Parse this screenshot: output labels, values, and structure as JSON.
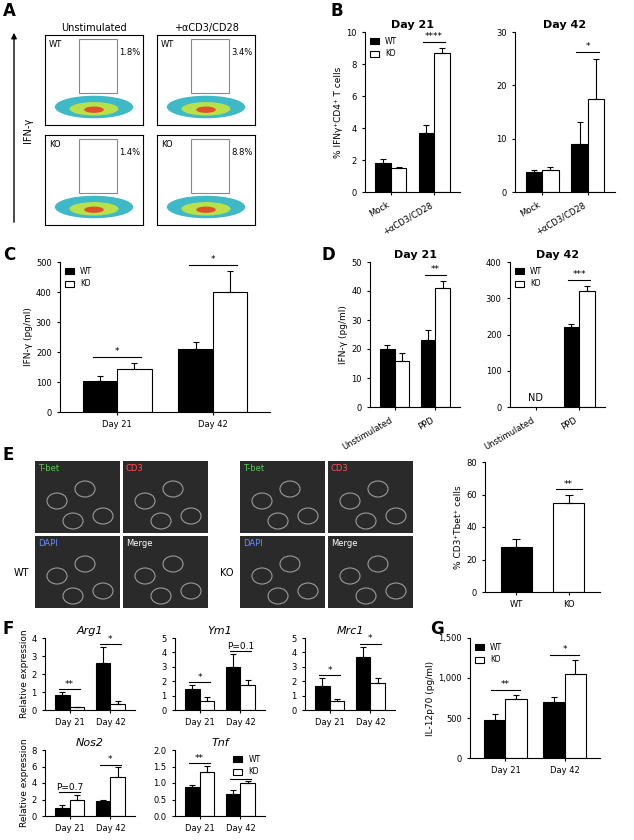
{
  "panels": [
    "A",
    "B",
    "C",
    "D",
    "E",
    "F",
    "G"
  ],
  "flow": {
    "y_label": "IFN-γ",
    "columns": [
      "Unstimulated",
      "+αCD3/CD28"
    ],
    "rows": [
      "WT",
      "KO"
    ],
    "percentages": [
      [
        "1.8%",
        "3.4%"
      ],
      [
        "1.4%",
        "8.8%"
      ]
    ]
  },
  "micrographs": {
    "rows": [
      "WT",
      "KO"
    ],
    "channels": [
      "T-bet",
      "CD3",
      "DAPI",
      "Merge"
    ]
  },
  "chart_data": [
    {
      "type": "bar",
      "title": "Day 21",
      "y_label": "% IFNγ⁺CD4⁺ T cells",
      "categories": [
        "Mock",
        "+αCD3/CD28"
      ],
      "series": [
        {
          "name": "WT",
          "color": "#000000",
          "values": [
            1.8,
            3.7
          ],
          "errors": [
            0.25,
            0.5
          ]
        },
        {
          "name": "KO",
          "color": "#ffffff",
          "values": [
            1.5,
            8.7
          ],
          "errors": [
            0.05,
            0.3
          ]
        }
      ],
      "ylim": [
        0,
        10
      ],
      "yticks": [
        0,
        2,
        4,
        6,
        8,
        10
      ],
      "legend": "upper left",
      "annotations": [
        {
          "text": "****",
          "category": 1
        }
      ]
    },
    {
      "type": "bar",
      "title": "Day 42",
      "categories": [
        "Mock",
        "+αCD3/CD28"
      ],
      "series": [
        {
          "name": "WT",
          "color": "#000000",
          "values": [
            3.8,
            9
          ],
          "errors": [
            0.4,
            4.2
          ]
        },
        {
          "name": "KO",
          "color": "#ffffff",
          "values": [
            4.2,
            17.5
          ],
          "errors": [
            0.5,
            7.5
          ]
        }
      ],
      "ylim": [
        0,
        30
      ],
      "yticks": [
        0,
        10,
        20,
        30
      ],
      "annotations": [
        {
          "text": "*",
          "category": 1
        }
      ]
    },
    {
      "type": "bar",
      "y_label": "IFN-γ (pg/ml)",
      "categories": [
        "Day 21",
        "Day 42"
      ],
      "series": [
        {
          "name": "WT",
          "color": "#000000",
          "values": [
            105,
            210
          ],
          "errors": [
            15,
            22
          ]
        },
        {
          "name": "KO",
          "color": "#ffffff",
          "values": [
            145,
            400
          ],
          "errors": [
            18,
            70
          ]
        }
      ],
      "ylim": [
        0,
        500
      ],
      "yticks": [
        0,
        100,
        200,
        300,
        400,
        500
      ],
      "legend": "upper left",
      "annotations": [
        {
          "text": "*",
          "category": 0
        },
        {
          "text": "*",
          "category": 1
        }
      ]
    },
    {
      "type": "bar",
      "title": "Day 21",
      "y_label": "IFN-γ (pg/ml)",
      "categories": [
        "Unstimulated",
        "PPD"
      ],
      "series": [
        {
          "name": "WT",
          "color": "#000000",
          "values": [
            20,
            23
          ],
          "errors": [
            1.5,
            3.5
          ]
        },
        {
          "name": "KO",
          "color": "#ffffff",
          "values": [
            16,
            41
          ],
          "errors": [
            2.5,
            2.5
          ]
        }
      ],
      "ylim": [
        0,
        50
      ],
      "yticks": [
        0,
        10,
        20,
        30,
        40,
        50
      ],
      "annotations": [
        {
          "text": "**",
          "category": 1
        }
      ]
    },
    {
      "type": "bar",
      "title": "Day 42",
      "categories": [
        "Unstimulated",
        "PPD"
      ],
      "series": [
        {
          "name": "WT",
          "color": "#000000",
          "values": [
            null,
            220
          ],
          "errors": [
            null,
            10
          ]
        },
        {
          "name": "KO",
          "color": "#ffffff",
          "values": [
            null,
            320
          ],
          "errors": [
            null,
            15
          ]
        }
      ],
      "ylim": [
        0,
        400
      ],
      "yticks": [
        0,
        100,
        200,
        300,
        400
      ],
      "legend": "upper left",
      "annotations": [
        {
          "text": "ND",
          "category": 0
        },
        {
          "text": "***",
          "category": 1
        }
      ]
    },
    {
      "type": "bar",
      "y_label": "% CD3⁺Tbet⁺ cells",
      "categories": [
        "WT",
        "KO"
      ],
      "values": [
        28,
        55
      ],
      "errors": [
        4.5,
        5
      ],
      "colors": [
        "#000000",
        "#ffffff"
      ],
      "ylim": [
        0,
        80
      ],
      "yticks": [
        0,
        20,
        40,
        60,
        80
      ],
      "annotations": [
        {
          "text": "**",
          "category": 1
        }
      ]
    },
    {
      "type": "bar",
      "title": "Arg1",
      "y_label": "Relative expression",
      "categories": [
        "Day 21",
        "Day 42"
      ],
      "series": [
        {
          "name": "WT",
          "color": "#000000",
          "values": [
            0.85,
            2.6
          ],
          "errors": [
            0.15,
            0.9
          ]
        },
        {
          "name": "KO",
          "color": "#ffffff",
          "values": [
            0.15,
            0.35
          ],
          "errors": [
            0.03,
            0.15
          ]
        }
      ],
      "ylim": [
        0,
        4
      ],
      "yticks": [
        0,
        1,
        2,
        3,
        4
      ],
      "annotations": [
        {
          "text": "**",
          "category": 0
        },
        {
          "text": "*",
          "category": 1
        }
      ]
    },
    {
      "type": "bar",
      "title": "Ym1",
      "categories": [
        "Day 21",
        "Day 42"
      ],
      "series": [
        {
          "name": "WT",
          "color": "#000000",
          "values": [
            1.45,
            3.0
          ],
          "errors": [
            0.3,
            0.9
          ]
        },
        {
          "name": "KO",
          "color": "#ffffff",
          "values": [
            0.65,
            1.72
          ],
          "errors": [
            0.25,
            0.35
          ]
        }
      ],
      "ylim": [
        0,
        5
      ],
      "yticks": [
        0,
        1,
        2,
        3,
        4,
        5
      ],
      "annotations": [
        {
          "text": "*",
          "category": 0
        },
        {
          "text": "P=0.1",
          "category": 1
        }
      ]
    },
    {
      "type": "bar",
      "title": "Mrc1",
      "categories": [
        "Day 21",
        "Day 42"
      ],
      "series": [
        {
          "name": "WT",
          "color": "#000000",
          "values": [
            1.65,
            3.7
          ],
          "errors": [
            0.55,
            0.7
          ]
        },
        {
          "name": "KO",
          "color": "#ffffff",
          "values": [
            0.62,
            1.9
          ],
          "errors": [
            0.15,
            0.35
          ]
        }
      ],
      "ylim": [
        0,
        5
      ],
      "yticks": [
        0,
        1,
        2,
        3,
        4,
        5
      ],
      "annotations": [
        {
          "text": "*",
          "category": 0
        },
        {
          "text": "*",
          "category": 1
        }
      ]
    },
    {
      "type": "bar",
      "title": "Nos2",
      "y_label": "Relative expression",
      "categories": [
        "Day 21",
        "Day 42"
      ],
      "series": [
        {
          "name": "WT",
          "color": "#000000",
          "values": [
            1.0,
            1.8
          ],
          "errors": [
            0.3,
            0.2
          ]
        },
        {
          "name": "KO",
          "color": "#ffffff",
          "values": [
            1.9,
            4.7
          ],
          "errors": [
            0.7,
            1.2
          ]
        }
      ],
      "ylim": [
        0,
        8
      ],
      "yticks": [
        0,
        2,
        4,
        6,
        8
      ],
      "annotations": [
        {
          "text": "P=0.7",
          "category": 0
        },
        {
          "text": "*",
          "category": 1
        }
      ]
    },
    {
      "type": "bar",
      "title": "Tnf",
      "categories": [
        "Day 21",
        "Day 42"
      ],
      "series": [
        {
          "name": "WT",
          "color": "#000000",
          "values": [
            0.87,
            0.68
          ],
          "errors": [
            0.08,
            0.1
          ]
        },
        {
          "name": "KO",
          "color": "#ffffff",
          "values": [
            1.32,
            1.0
          ],
          "errors": [
            0.2,
            0.05
          ]
        }
      ],
      "ylim": [
        0,
        2
      ],
      "yticks": [
        {
          "value": 0,
          "label": "0.0"
        },
        0.5,
        {
          "value": 1,
          "label": "1.0"
        },
        1.5,
        {
          "value": 2,
          "label": "2.0"
        }
      ],
      "legend": "upper right",
      "annotations": [
        {
          "text": "**",
          "category": 0
        },
        {
          "text": "*",
          "category": 1
        }
      ]
    },
    {
      "type": "bar",
      "y_label": "IL-12p70 (pg/ml)",
      "categories": [
        "Day 21",
        "Day 42"
      ],
      "series": [
        {
          "name": "WT",
          "color": "#000000",
          "values": [
            470,
            700
          ],
          "errors": [
            80,
            60
          ]
        },
        {
          "name": "KO",
          "color": "#ffffff",
          "values": [
            740,
            1050
          ],
          "errors": [
            50,
            180
          ]
        }
      ],
      "ylim": [
        0,
        1500
      ],
      "yticks": [
        0,
        500,
        {
          "value": 1000,
          "label": "1,000"
        },
        {
          "value": 1500,
          "label": "1,500"
        }
      ],
      "legend": "upper left",
      "annotations": [
        {
          "text": "**",
          "category": 0
        },
        {
          "text": "*",
          "category": 1
        }
      ]
    }
  ]
}
